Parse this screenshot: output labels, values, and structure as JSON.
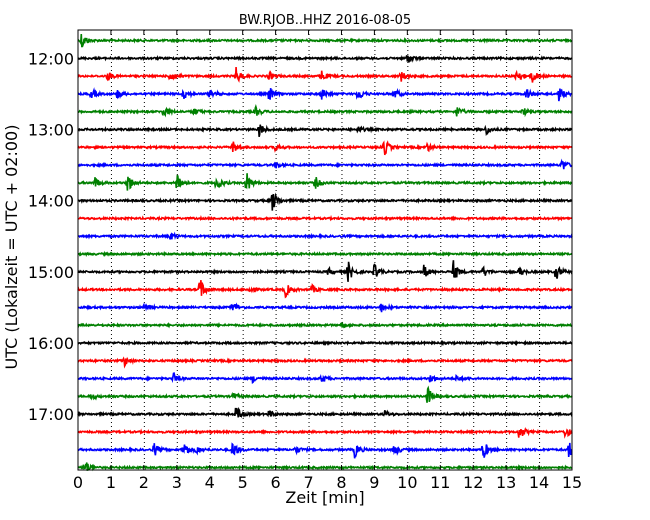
{
  "chart_data": {
    "type": "line",
    "title": "BW.RJOB..HHZ 2016-08-05",
    "xlabel": "Zeit  [min]",
    "ylabel": "UTC (Lokalzeit = UTC + 02:00)",
    "xlim": [
      0,
      15
    ],
    "x_ticks": [
      "0",
      "1",
      "2",
      "3",
      "4",
      "5",
      "6",
      "7",
      "8",
      "9",
      "10",
      "11",
      "12",
      "13",
      "14",
      "15"
    ],
    "y_start_minutes_utc": 705,
    "trace_interval_minutes": 15,
    "y_tick_labels": [
      "12:00",
      "13:00",
      "14:00",
      "15:00",
      "16:00",
      "17:00"
    ],
    "y_tick_trace_index": [
      1,
      5,
      9,
      13,
      17,
      21
    ],
    "grid": "vertical-dotted",
    "trace_colors": [
      "#ff0000",
      "#0000ff",
      "#008000",
      "#000000"
    ],
    "traces": [
      {
        "color": "#008000",
        "bursts": [
          [
            0.1,
            1.0
          ]
        ]
      },
      {
        "color": "#000000",
        "bursts": [
          [
            10.0,
            0.6
          ]
        ]
      },
      {
        "color": "#ff0000",
        "bursts": [
          [
            2.8,
            0.8
          ],
          [
            4.8,
            0.9
          ],
          [
            7.4,
            0.6
          ],
          [
            9.8,
            0.6
          ],
          [
            13.3,
            0.9
          ],
          [
            13.8,
            0.7
          ],
          [
            0.9,
            0.5
          ],
          [
            5.8,
            0.5
          ]
        ]
      },
      {
        "color": "#0000ff",
        "bursts": [
          [
            0.4,
            0.6
          ],
          [
            1.2,
            0.5
          ],
          [
            3.2,
            0.6
          ],
          [
            4.0,
            0.5
          ],
          [
            5.8,
            0.9
          ],
          [
            7.4,
            0.7
          ],
          [
            8.5,
            0.8
          ],
          [
            9.6,
            0.6
          ],
          [
            13.6,
            0.7
          ],
          [
            14.6,
            0.8
          ]
        ]
      },
      {
        "color": "#008000",
        "bursts": [
          [
            2.6,
            0.6
          ],
          [
            3.5,
            0.5
          ],
          [
            5.4,
            0.5
          ],
          [
            11.5,
            0.6
          ],
          [
            13.5,
            0.5
          ]
        ]
      },
      {
        "color": "#000000",
        "bursts": [
          [
            5.5,
            0.8
          ],
          [
            12.4,
            0.5
          ],
          [
            8.5,
            0.4
          ]
        ]
      },
      {
        "color": "#ff0000",
        "bursts": [
          [
            4.7,
            0.7
          ],
          [
            9.3,
            1.0
          ],
          [
            6.0,
            0.4
          ],
          [
            10.6,
            0.5
          ]
        ]
      },
      {
        "color": "#0000ff",
        "bursts": [
          [
            14.7,
            0.7
          ],
          [
            6.0,
            0.4
          ]
        ]
      },
      {
        "color": "#008000",
        "bursts": [
          [
            1.5,
            1.2
          ],
          [
            3.0,
            1.3
          ],
          [
            4.2,
            1.0
          ],
          [
            5.1,
            1.4
          ],
          [
            7.2,
            0.7
          ],
          [
            0.5,
            0.7
          ]
        ]
      },
      {
        "color": "#000000",
        "bursts": [
          [
            5.9,
            1.2
          ]
        ]
      },
      {
        "color": "#ff0000",
        "bursts": []
      },
      {
        "color": "#0000ff",
        "bursts": [
          [
            2.8,
            0.4
          ]
        ]
      },
      {
        "color": "#008000",
        "bursts": []
      },
      {
        "color": "#000000",
        "bursts": [
          [
            8.2,
            1.2
          ],
          [
            9.0,
            0.9
          ],
          [
            10.5,
            0.8
          ],
          [
            11.4,
            1.2
          ],
          [
            12.3,
            0.6
          ],
          [
            14.5,
            1.0
          ],
          [
            13.4,
            0.5
          ],
          [
            7.6,
            0.4
          ]
        ]
      },
      {
        "color": "#ff0000",
        "bursts": [
          [
            3.7,
            1.4
          ],
          [
            6.3,
            0.8
          ],
          [
            5.2,
            0.4
          ],
          [
            7.1,
            0.5
          ]
        ]
      },
      {
        "color": "#0000ff",
        "bursts": [
          [
            4.7,
            0.6
          ],
          [
            9.2,
            0.5
          ],
          [
            2.0,
            0.3
          ]
        ]
      },
      {
        "color": "#008000",
        "bursts": [
          [
            8.0,
            0.3
          ]
        ]
      },
      {
        "color": "#000000",
        "bursts": []
      },
      {
        "color": "#ff0000",
        "bursts": [
          [
            1.4,
            0.6
          ]
        ]
      },
      {
        "color": "#0000ff",
        "bursts": [
          [
            2.9,
            0.6
          ],
          [
            7.4,
            0.5
          ],
          [
            10.7,
            0.5
          ],
          [
            5.3,
            0.4
          ],
          [
            11.5,
            0.4
          ]
        ]
      },
      {
        "color": "#008000",
        "bursts": [
          [
            10.6,
            1.2
          ],
          [
            4.7,
            0.4
          ],
          [
            0.4,
            0.3
          ]
        ]
      },
      {
        "color": "#000000",
        "bursts": [
          [
            4.8,
            0.9
          ],
          [
            9.3,
            0.4
          ],
          [
            5.8,
            0.4
          ]
        ]
      },
      {
        "color": "#ff0000",
        "bursts": [
          [
            13.4,
            0.9
          ],
          [
            14.8,
            0.7
          ]
        ]
      },
      {
        "color": "#0000ff",
        "bursts": [
          [
            2.3,
            0.8
          ],
          [
            3.2,
            1.0
          ],
          [
            4.7,
            1.0
          ],
          [
            8.4,
            0.9
          ],
          [
            9.6,
            0.7
          ],
          [
            12.3,
            1.1
          ],
          [
            14.9,
            1.0
          ],
          [
            6.6,
            0.5
          ],
          [
            3.6,
            0.5
          ]
        ]
      },
      {
        "color": "#008000",
        "bursts": [
          [
            0.2,
            0.9
          ]
        ]
      }
    ]
  }
}
